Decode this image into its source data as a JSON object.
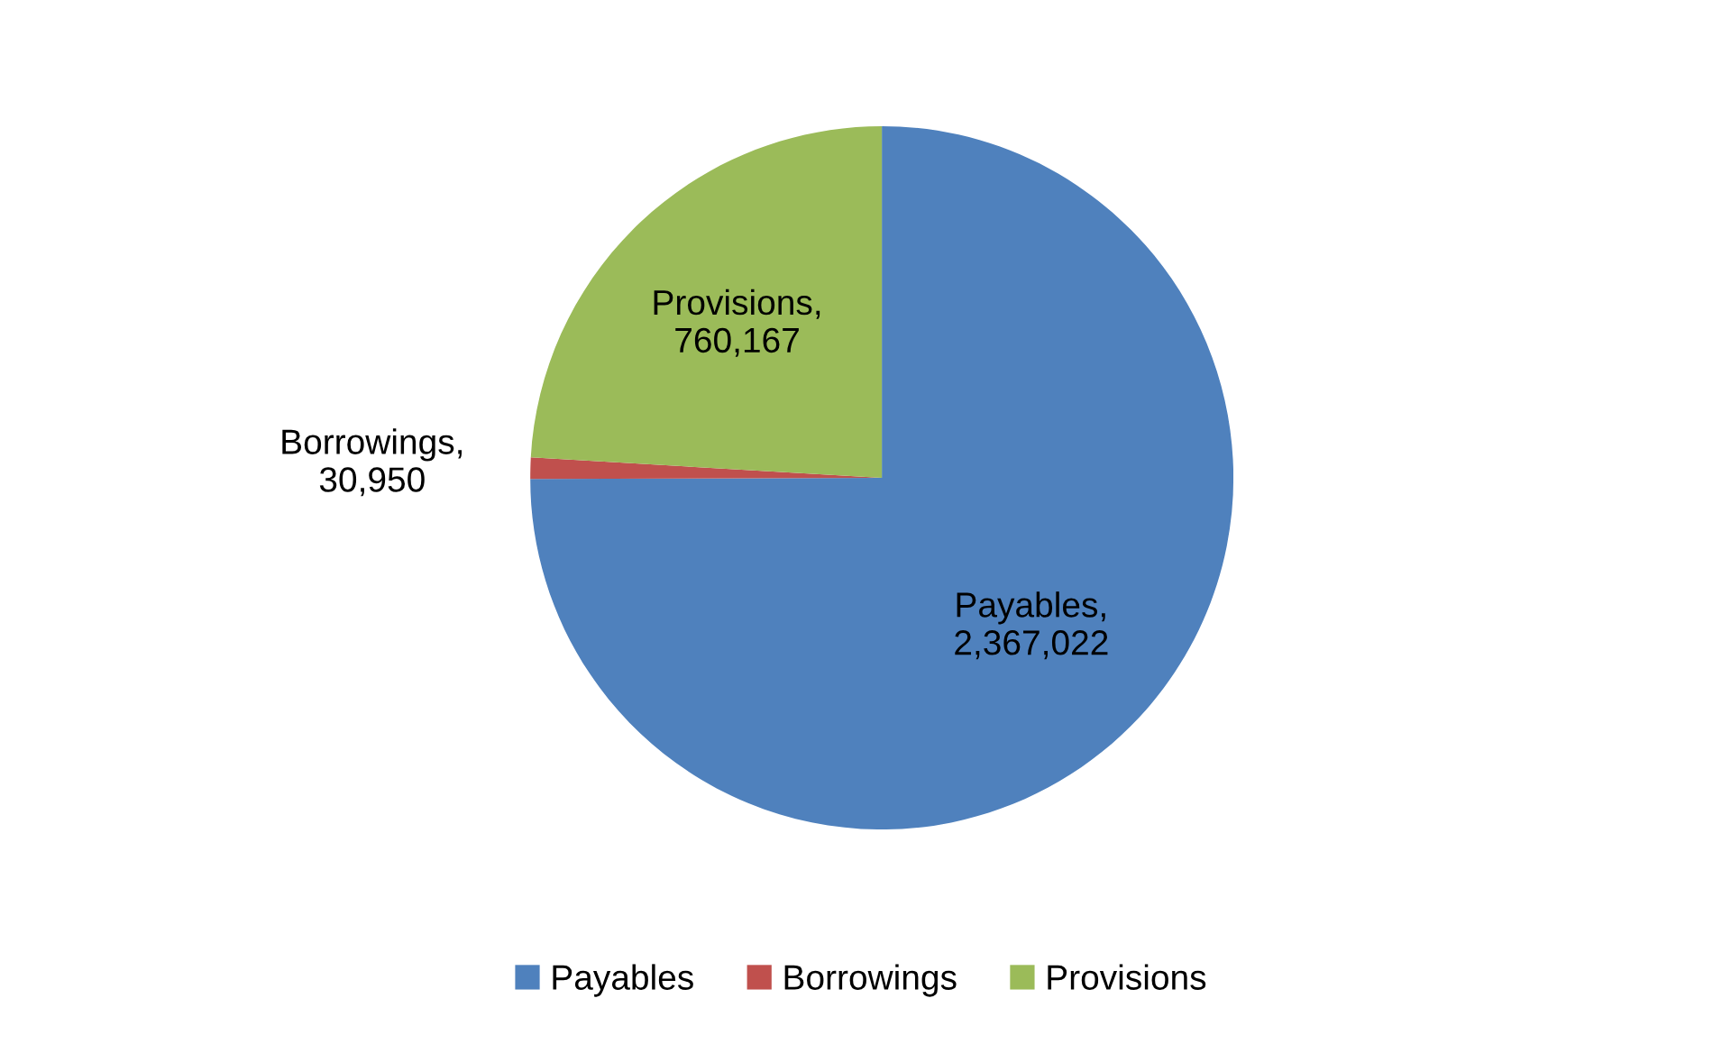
{
  "chart_data": {
    "type": "pie",
    "categories": [
      "Payables",
      "Borrowings",
      "Provisions"
    ],
    "values": [
      2367022,
      30950,
      760167
    ],
    "colors": [
      "#4f81bd",
      "#c0504d",
      "#9bbb59"
    ],
    "value_labels": [
      "Payables,\n2,367,022",
      "Borrowings,\n30,950",
      "Provisions,\n760,167"
    ],
    "legend": "bottom"
  }
}
